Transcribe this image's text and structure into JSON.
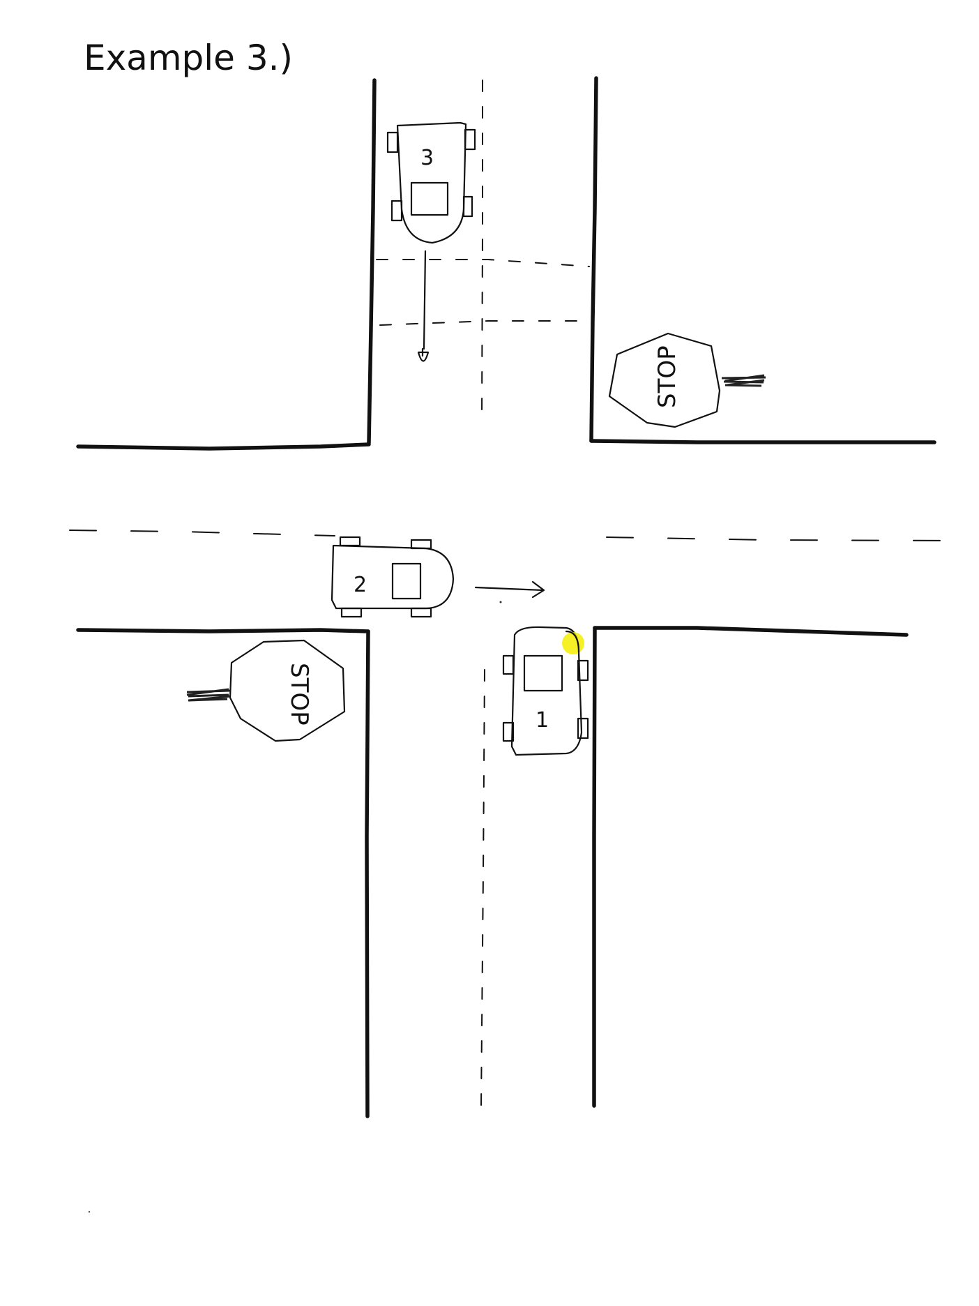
{
  "diagram": {
    "title": "Example 3.)",
    "vehicles": [
      {
        "label": "1",
        "heading": "north",
        "note": "highlighted yellow at front-right corner"
      },
      {
        "label": "2",
        "heading": "east"
      },
      {
        "label": "3",
        "heading": "south"
      }
    ],
    "stop_signs": [
      {
        "text": "STOP"
      },
      {
        "text": "STOP"
      }
    ],
    "colors": {
      "ink": "#111111",
      "highlight": "#f3ee00",
      "paper": "#ffffff"
    }
  }
}
